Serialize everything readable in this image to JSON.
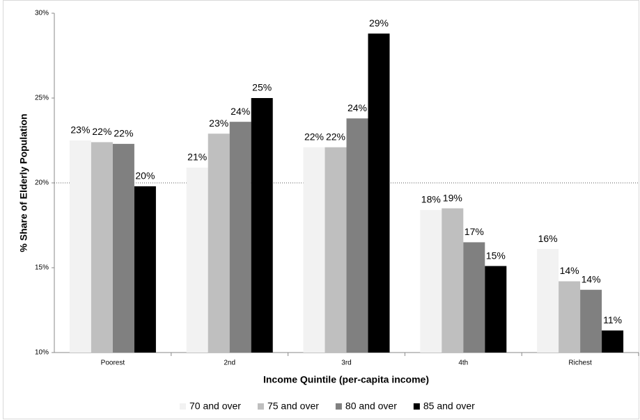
{
  "chart_data": {
    "type": "bar",
    "x_label": "Income Quintile (per-capita income)",
    "y_label": "% Share of Elderly Population",
    "categories": [
      "Poorest",
      "2nd",
      "3rd",
      "4th",
      "Richest"
    ],
    "series": [
      {
        "name": "70 and over",
        "color": "#f2f2f2",
        "values": [
          22.5,
          20.9,
          22.1,
          18.4,
          16.1
        ],
        "value_labels": [
          "23%",
          "21%",
          "22%",
          "18%",
          "16%"
        ]
      },
      {
        "name": "75 and over",
        "color": "#bfbfbf",
        "values": [
          22.4,
          22.9,
          22.1,
          18.5,
          14.2
        ],
        "value_labels": [
          "22%",
          "23%",
          "22%",
          "19%",
          "14%"
        ]
      },
      {
        "name": "80 and over",
        "color": "#808080",
        "values": [
          22.3,
          23.6,
          23.8,
          16.5,
          13.7
        ],
        "value_labels": [
          "22%",
          "24%",
          "24%",
          "17%",
          "14%"
        ]
      },
      {
        "name": "85 and over",
        "color": "#000000",
        "values": [
          19.8,
          25.0,
          28.8,
          15.1,
          11.3
        ],
        "value_labels": [
          "20%",
          "25%",
          "29%",
          "15%",
          "11%"
        ]
      }
    ],
    "ylim": [
      10,
      30
    ],
    "yticks": [
      {
        "value": 10,
        "label": "10%"
      },
      {
        "value": 15,
        "label": "15%"
      },
      {
        "value": 20,
        "label": "20%"
      },
      {
        "value": 25,
        "label": "25%"
      },
      {
        "value": 30,
        "label": "30%"
      }
    ],
    "grid_at": [
      20
    ],
    "legend": "bottom"
  }
}
